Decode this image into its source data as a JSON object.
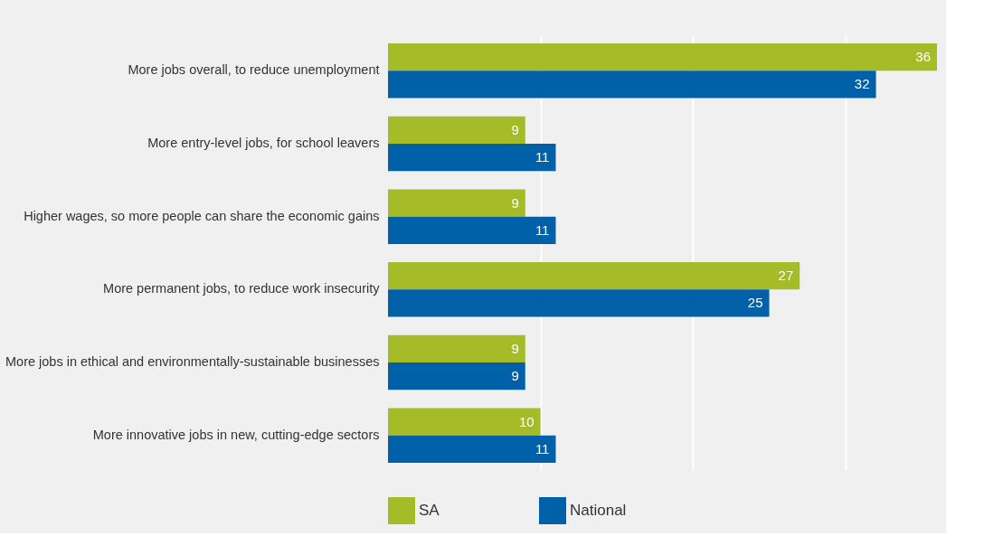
{
  "chart_data": {
    "type": "bar",
    "orientation": "horizontal",
    "categories": [
      "More jobs overall, to reduce unemployment",
      "More entry-level jobs, for school leavers",
      "Higher wages, so more people can share the economic gains",
      "More permanent jobs, to reduce work insecurity",
      "More jobs in ethical and environmentally-sustainable businesses",
      "More innovative jobs in new, cutting-edge sectors"
    ],
    "series": [
      {
        "name": "SA",
        "color": "#a5bb28",
        "values": [
          36,
          9,
          9,
          27,
          9,
          10
        ]
      },
      {
        "name": "National",
        "color": "#0060a8",
        "values": [
          32,
          11,
          11,
          25,
          9,
          11
        ]
      }
    ],
    "xticks": [
      {
        "value": 10,
        "label": null
      },
      {
        "value": 20,
        "label": null
      },
      {
        "value": 30,
        "label": null
      }
    ],
    "tick_labels": "y",
    "grid": "x",
    "legend": "bottom",
    "data_labels": true
  }
}
